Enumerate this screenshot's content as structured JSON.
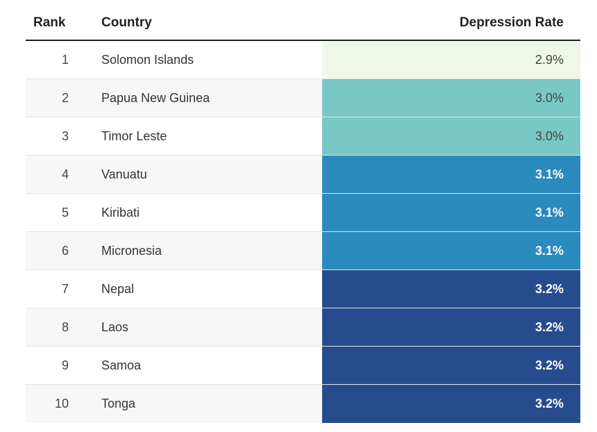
{
  "headers": {
    "rank": "Rank",
    "country": "Country",
    "rate": "Depression Rate"
  },
  "chart_data": {
    "type": "table",
    "columns": [
      "Rank",
      "Country",
      "Depression Rate"
    ],
    "rows": [
      {
        "rank": "1",
        "country": "Solomon Islands",
        "rate": "2.9%",
        "value": 2.9
      },
      {
        "rank": "2",
        "country": "Papua New Guinea",
        "rate": "3.0%",
        "value": 3.0
      },
      {
        "rank": "3",
        "country": "Timor Leste",
        "rate": "3.0%",
        "value": 3.0
      },
      {
        "rank": "4",
        "country": "Vanuatu",
        "rate": "3.1%",
        "value": 3.1
      },
      {
        "rank": "5",
        "country": "Kiribati",
        "rate": "3.1%",
        "value": 3.1
      },
      {
        "rank": "6",
        "country": "Micronesia",
        "rate": "3.1%",
        "value": 3.1
      },
      {
        "rank": "7",
        "country": "Nepal",
        "rate": "3.2%",
        "value": 3.2
      },
      {
        "rank": "8",
        "country": "Laos",
        "rate": "3.2%",
        "value": 3.2
      },
      {
        "rank": "9",
        "country": "Samoa",
        "rate": "3.2%",
        "value": 3.2
      },
      {
        "rank": "10",
        "country": "Tonga",
        "rate": "3.2%",
        "value": 3.2
      }
    ],
    "color_scale": {
      "2.9": {
        "bg": "#eff8e8",
        "text": "#444444"
      },
      "3.0": {
        "bg": "#79c8c5",
        "text": "#444444"
      },
      "3.1": {
        "bg": "#2b8bbf",
        "text": "#ffffff"
      },
      "3.2": {
        "bg": "#264c8d",
        "text": "#ffffff"
      }
    }
  }
}
